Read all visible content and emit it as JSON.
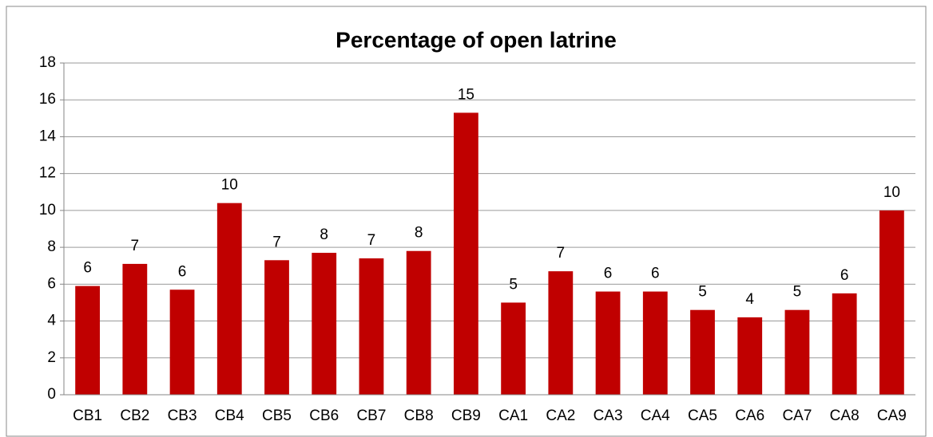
{
  "chart_data": {
    "type": "bar",
    "title": "Percentage of open latrine",
    "categories": [
      "CB1",
      "CB2",
      "CB3",
      "CB4",
      "CB5",
      "CB6",
      "CB7",
      "CB8",
      "CB9",
      "CA1",
      "CA2",
      "CA3",
      "CA4",
      "CA5",
      "CA6",
      "CA7",
      "CA8",
      "CA9"
    ],
    "values": [
      5.9,
      7.1,
      5.7,
      10.4,
      7.3,
      7.7,
      7.4,
      7.8,
      15.3,
      5.0,
      6.7,
      5.6,
      5.6,
      4.6,
      4.2,
      4.6,
      5.5,
      10.0
    ],
    "value_labels": [
      "6",
      "7",
      "6",
      "10",
      "7",
      "8",
      "7",
      "8",
      "15",
      "5",
      "7",
      "6",
      "6",
      "5",
      "4",
      "5",
      "6",
      "10"
    ],
    "color": "#c00000",
    "ylim": [
      0,
      18
    ],
    "yticks": [
      0,
      2,
      4,
      6,
      8,
      10,
      12,
      14,
      16,
      18
    ],
    "grid": true
  }
}
